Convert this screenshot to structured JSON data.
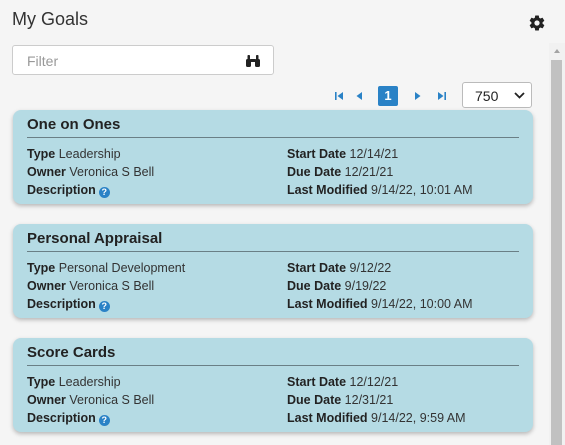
{
  "header": {
    "title": "My Goals",
    "settings_icon": "gear-icon"
  },
  "filter": {
    "placeholder": "Filter",
    "value": "",
    "search_icon": "binoculars-icon"
  },
  "pager": {
    "current_page": "1",
    "page_size": "750"
  },
  "field_labels": {
    "type": "Type",
    "owner": "Owner",
    "description": "Description",
    "start_date": "Start Date",
    "due_date": "Due Date",
    "last_modified": "Last Modified"
  },
  "goals": [
    {
      "title": "One on Ones",
      "type": "Leadership",
      "owner": "Veronica S Bell",
      "start_date": "12/14/21",
      "due_date": "12/21/21",
      "last_modified": "9/14/22, 10:01 AM"
    },
    {
      "title": "Personal Appraisal",
      "type": "Personal Development",
      "owner": "Veronica S Bell",
      "start_date": "9/12/22",
      "due_date": "9/19/22",
      "last_modified": "9/14/22, 10:00 AM"
    },
    {
      "title": "Score Cards",
      "type": "Leadership",
      "owner": "Veronica S Bell",
      "start_date": "12/12/21",
      "due_date": "12/31/21",
      "last_modified": "9/14/22, 9:59 AM"
    }
  ],
  "colors": {
    "card_bg": "#b5dbe4",
    "accent": "#2a82c6"
  }
}
